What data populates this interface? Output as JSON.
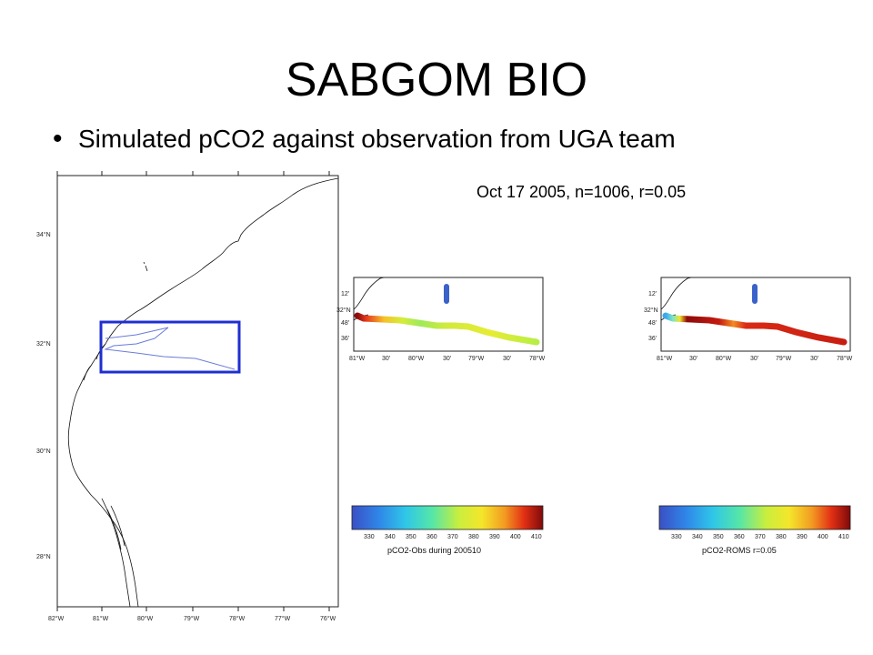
{
  "slide": {
    "title": "SABGOM BIO",
    "bullet": "Simulated pCO2 against observation from UGA team",
    "caption": "Oct 17 2005, n=1006, r=0.05"
  },
  "big_map": {
    "lon_ticks": [
      "82°W",
      "81°W",
      "80°W",
      "79°W",
      "78°W",
      "77°W",
      "76°W"
    ],
    "lat_ticks": [
      "34°N",
      "32°N",
      "30°N",
      "28°N"
    ]
  },
  "obs_panel": {
    "lon_ticks": [
      "81°W",
      "30'",
      "80°W",
      "30'",
      "79°W",
      "30'",
      "78°W"
    ],
    "lat_ticks": [
      "12'",
      "32°N",
      "48'",
      "36'"
    ],
    "colorbar_ticks": [
      "330",
      "340",
      "350",
      "360",
      "370",
      "380",
      "390",
      "400",
      "410"
    ],
    "colorbar_label": "pCO2-Obs during 200510"
  },
  "roms_panel": {
    "lon_ticks": [
      "81°W",
      "30'",
      "80°W",
      "30'",
      "79°W",
      "30'",
      "78°W"
    ],
    "lat_ticks": [
      "12'",
      "32°N",
      "48'",
      "36'"
    ],
    "colorbar_ticks": [
      "330",
      "340",
      "350",
      "360",
      "370",
      "380",
      "390",
      "400",
      "410"
    ],
    "colorbar_label": "pCO2-ROMS r=0.05"
  },
  "colors": {
    "box": "#1f2fd0",
    "track": "#6a7bd8",
    "coast": "#111111"
  }
}
